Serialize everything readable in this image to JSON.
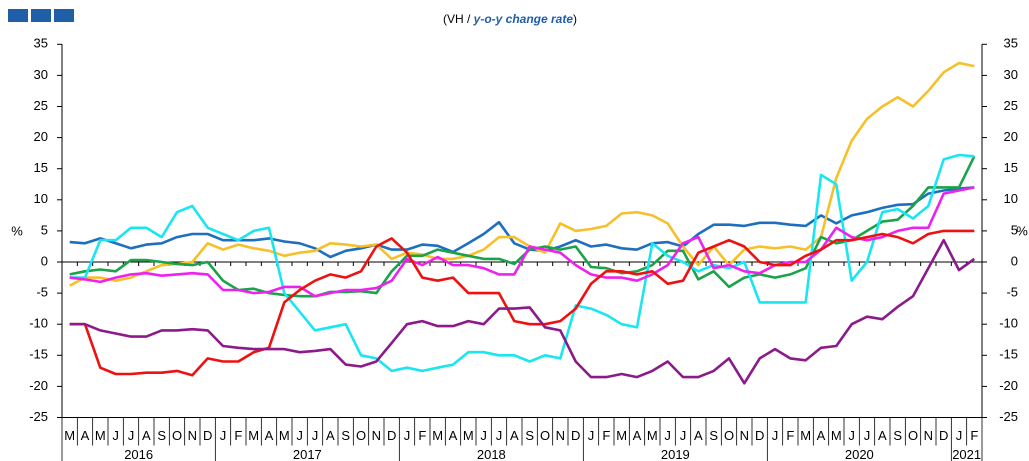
{
  "chart_data": {
    "type": "line",
    "subtitle_start": "(VH /",
    "subtitle_emphasis": "y-o-y change rate",
    "subtitle_end": ")",
    "y_label": "%",
    "y2_label": "%",
    "categories": [
      "M",
      "A",
      "M",
      "J",
      "J",
      "A",
      "S",
      "O",
      "N",
      "D",
      "J",
      "F",
      "M",
      "A",
      "M",
      "J",
      "J",
      "A",
      "S",
      "O",
      "N",
      "D",
      "J",
      "F",
      "M",
      "A",
      "M",
      "J",
      "J",
      "A",
      "S",
      "O",
      "N",
      "D",
      "J",
      "F",
      "M",
      "A",
      "M",
      "J",
      "J",
      "A",
      "S",
      "O",
      "N",
      "D",
      "J",
      "F",
      "M",
      "A",
      "M",
      "J",
      "J",
      "A",
      "S",
      "O",
      "N",
      "D",
      "J",
      "F"
    ],
    "years": [
      "2016",
      "2017",
      "2018",
      "2019",
      "2020",
      "2021"
    ],
    "ylim": [
      -25,
      35
    ],
    "yticks": [
      -25,
      -20,
      -15,
      -10,
      -5,
      0,
      5,
      10,
      15,
      20,
      25,
      30,
      35
    ],
    "y2lim": [
      -25,
      35
    ],
    "y2ticks": [
      -25,
      -20,
      -15,
      -10,
      -5,
      0,
      5,
      10,
      15,
      20,
      25,
      30,
      35
    ],
    "series": [
      {
        "color": "#1f6fbf",
        "values": [
          3.2,
          3,
          3.8,
          3,
          2.2,
          2.8,
          3,
          4,
          4.5,
          4.5,
          3.5,
          3.5,
          3.5,
          3.8,
          3.3,
          3,
          2.2,
          0.8,
          1.8,
          2.2,
          2.8,
          2,
          2,
          2.8,
          2.6,
          1.6,
          3,
          4.5,
          6.4,
          3,
          2,
          1.8,
          2.5,
          3.5,
          2.5,
          2.8,
          2.2,
          2,
          3,
          3.2,
          2.5,
          4.5,
          6,
          6,
          5.8,
          6.3,
          6.3,
          6,
          5.8,
          7.5,
          6.2,
          7.5,
          8,
          8.7,
          9.2,
          9.3,
          11,
          11.5,
          11.8,
          12
        ]
      },
      {
        "color": "#f5c02a",
        "values": [
          -3.8,
          -2.5,
          -2.5,
          -3,
          -2.5,
          -1.5,
          -0.5,
          -0.3,
          0,
          3,
          2,
          2.8,
          2.2,
          1.8,
          1,
          1.5,
          1.8,
          3,
          2.8,
          2.5,
          2.8,
          0.5,
          1.5,
          1.2,
          0.5,
          0.5,
          1,
          2,
          4,
          4,
          2.5,
          1.5,
          6.2,
          5,
          5.3,
          5.8,
          7.8,
          8,
          7.5,
          6.2,
          2.5,
          -0.5,
          2.5,
          -0.5,
          2,
          2.5,
          2.2,
          2.5,
          2,
          4,
          13.5,
          19.5,
          23,
          25,
          26.5,
          25,
          27.5,
          30.5,
          32,
          31.5
        ]
      },
      {
        "color": "#1aa34a",
        "values": [
          -2,
          -1.5,
          -1.2,
          -1.5,
          0.3,
          0.3,
          0,
          -0.3,
          -0.5,
          0,
          -3,
          -4.5,
          -4.3,
          -5,
          -5.3,
          -5.5,
          -5.5,
          -4.8,
          -4.8,
          -4.7,
          -5,
          -1.5,
          1,
          1,
          2,
          1.5,
          1,
          0.5,
          0.5,
          -0.3,
          2,
          2.5,
          2,
          2.5,
          -0.8,
          -1,
          -1.8,
          -1.5,
          -0.5,
          1.8,
          1.8,
          -2.8,
          -1.5,
          -4,
          -2.5,
          -2,
          -2.5,
          -2,
          -1,
          4,
          3,
          3.5,
          5,
          6.5,
          6.8,
          9,
          12,
          12,
          12,
          17
        ]
      },
      {
        "color": "#19e6f0",
        "values": [
          -2.5,
          -2.5,
          3.5,
          3.5,
          5.5,
          5.5,
          4,
          8,
          9,
          5.5,
          4.5,
          3.5,
          5,
          5.5,
          -5,
          -8,
          -11,
          -10.5,
          -10,
          -15,
          -15.5,
          -17.5,
          -17,
          -17.5,
          -17,
          -16.5,
          -14.5,
          -14.5,
          -15,
          -15,
          -16,
          -15,
          -15.5,
          -7,
          -7.5,
          -8.5,
          -10,
          -10.5,
          3,
          1,
          0,
          -1.5,
          -0.5,
          -1,
          0,
          -6.5,
          -6.5,
          -6.5,
          -6.5,
          14,
          12.5,
          -3,
          0,
          8,
          8.5,
          7,
          9,
          16.5,
          17.2,
          17
        ]
      },
      {
        "color": "#ee22ee",
        "values": [
          -2.5,
          -2.8,
          -3.2,
          -2.5,
          -2,
          -1.8,
          -2.2,
          -2,
          -1.8,
          -2,
          -4.5,
          -4.5,
          -5,
          -4.8,
          -4,
          -4,
          -5.5,
          -5,
          -4.5,
          -4.5,
          -4.2,
          -3,
          0.5,
          -0.5,
          0.8,
          -0.5,
          -0.5,
          -1,
          -2,
          -2,
          2.5,
          2,
          1.5,
          -0.5,
          -2,
          -2.5,
          -2.5,
          -3,
          -2,
          -0.5,
          3,
          4,
          -1,
          -0.5,
          -1.5,
          -1.8,
          -0.5,
          0,
          0,
          2,
          5.5,
          4,
          3.5,
          4,
          5,
          5.5,
          5.5,
          11,
          11.5,
          12
        ]
      },
      {
        "color": "#ee1111",
        "values": [
          -10,
          -10,
          -17,
          -18,
          -18,
          -17.8,
          -17.8,
          -17.5,
          -18.2,
          -15.5,
          -16,
          -16,
          -14.5,
          -13.8,
          -6.5,
          -4.5,
          -3,
          -2,
          -2.5,
          -1.5,
          2.5,
          3.8,
          1.5,
          -2.5,
          -3,
          -2.5,
          -5,
          -5,
          -5,
          -9.5,
          -10,
          -10,
          -9.5,
          -7.5,
          -3.5,
          -1.5,
          -1.5,
          -2,
          -1.5,
          -3.5,
          -3,
          1.5,
          2.5,
          3.5,
          2.5,
          0,
          -0.5,
          -0.5,
          1,
          2,
          3.5,
          3.5,
          4,
          4.5,
          4,
          3,
          4.5,
          5,
          5,
          5
        ]
      },
      {
        "color": "#8b1a8b",
        "values": [
          -10,
          -10,
          -11,
          -11.5,
          -12,
          -12,
          -11,
          -11,
          -10.8,
          -11,
          -13.5,
          -13.8,
          -14,
          -14,
          -14,
          -14.5,
          -14.3,
          -14,
          -16.5,
          -16.8,
          -16,
          -13,
          -10,
          -9.5,
          -10.3,
          -10.3,
          -9.5,
          -10,
          -7.5,
          -7.5,
          -7.3,
          -10.5,
          -11,
          -16,
          -18.5,
          -18.5,
          -18,
          -18.5,
          -17.5,
          -16,
          -18.5,
          -18.5,
          -17.5,
          -15.5,
          -19.5,
          -15.5,
          -14,
          -15.5,
          -15.8,
          -13.8,
          -13.5,
          -10,
          -8.8,
          -9.2,
          -7.2,
          -5.5,
          -1,
          3.5,
          -1.3,
          0.5
        ]
      }
    ]
  }
}
